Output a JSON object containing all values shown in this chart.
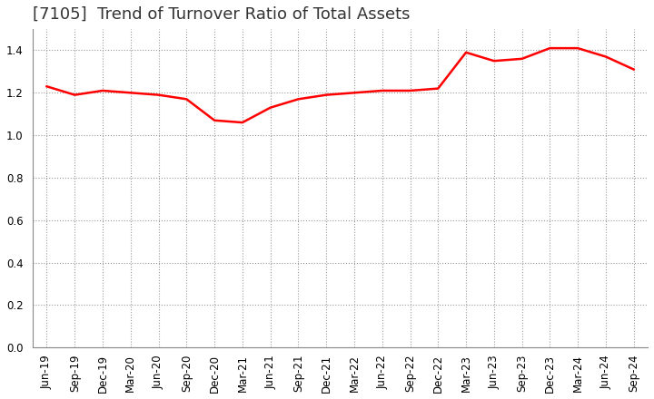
{
  "title": "[7105]  Trend of Turnover Ratio of Total Assets",
  "x_labels": [
    "Jun-19",
    "Sep-19",
    "Dec-19",
    "Mar-20",
    "Jun-20",
    "Sep-20",
    "Dec-20",
    "Mar-21",
    "Jun-21",
    "Sep-21",
    "Dec-21",
    "Mar-22",
    "Jun-22",
    "Sep-22",
    "Dec-22",
    "Mar-23",
    "Jun-23",
    "Sep-23",
    "Dec-23",
    "Mar-24",
    "Jun-24",
    "Sep-24"
  ],
  "y_values": [
    1.23,
    1.19,
    1.21,
    1.2,
    1.19,
    1.17,
    1.07,
    1.06,
    1.13,
    1.17,
    1.19,
    1.2,
    1.21,
    1.21,
    1.22,
    1.39,
    1.35,
    1.36,
    1.41,
    1.41,
    1.37,
    1.31
  ],
  "line_color": "#FF0000",
  "line_width": 1.8,
  "ylim": [
    0.0,
    1.5
  ],
  "yticks": [
    0.0,
    0.2,
    0.4,
    0.6,
    0.8,
    1.0,
    1.2,
    1.4
  ],
  "grid_color": "#999999",
  "grid_style": "dotted",
  "bg_color": "#ffffff",
  "title_fontsize": 13,
  "tick_fontsize": 8.5,
  "title_color": "#333333"
}
